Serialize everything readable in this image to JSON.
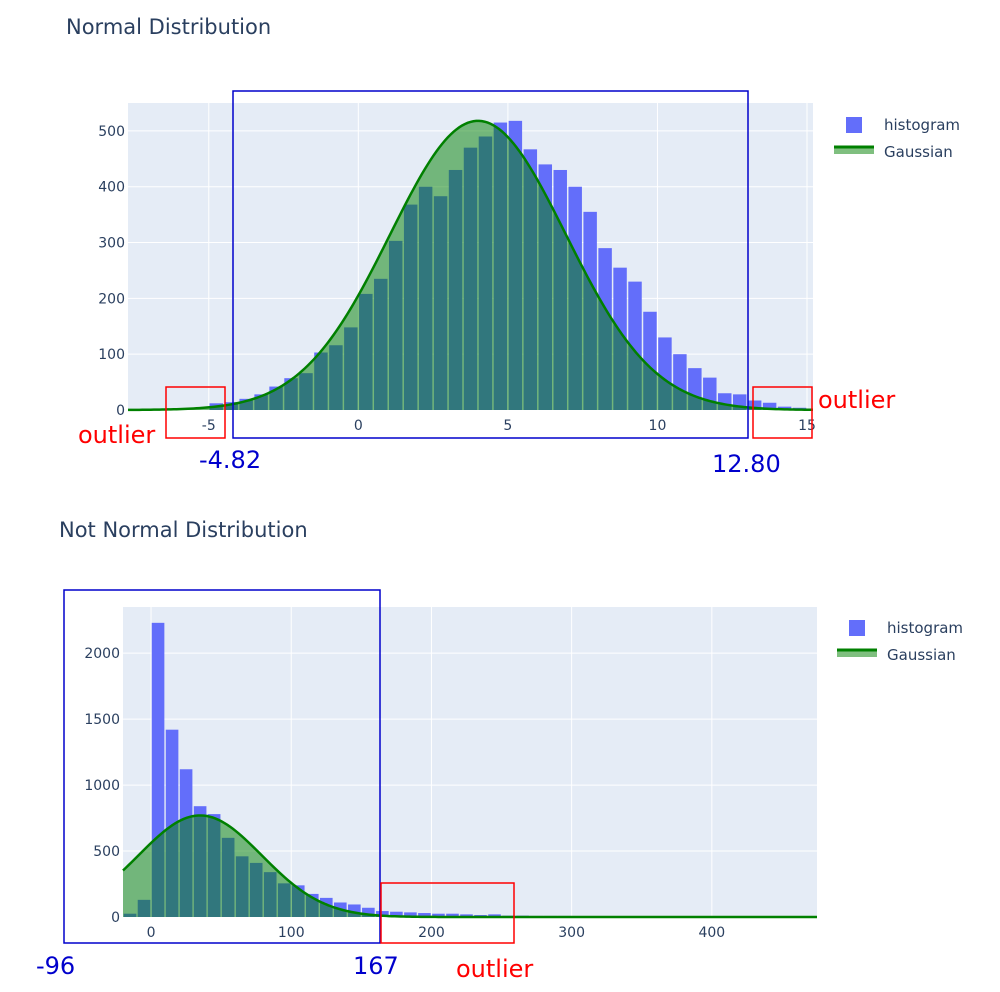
{
  "chart_data": [
    {
      "type": "bar",
      "title": "Normal Distribution",
      "xlim": [
        -7.7,
        15.2
      ],
      "ylim": [
        0,
        550
      ],
      "xticks": [
        -5,
        0,
        5,
        10,
        15
      ],
      "yticks": [
        0,
        100,
        200,
        300,
        400,
        500
      ],
      "grid": true,
      "legend_position": "top-right",
      "bin_width": 0.5,
      "bar_color": "#636efa",
      "series": [
        {
          "name": "histogram",
          "type": "bar",
          "x": [
            -4.75,
            -4.25,
            -3.75,
            -3.25,
            -2.75,
            -2.25,
            -1.75,
            -1.25,
            -0.75,
            -0.25,
            0.25,
            0.75,
            1.25,
            1.75,
            2.25,
            2.75,
            3.25,
            3.75,
            4.25,
            4.75,
            5.25,
            5.75,
            6.25,
            6.75,
            7.25,
            7.75,
            8.25,
            8.75,
            9.25,
            9.75,
            10.25,
            10.75,
            11.25,
            11.75,
            12.25,
            12.75,
            13.25,
            13.75,
            14.25,
            14.75
          ],
          "values": [
            12,
            14,
            20,
            28,
            42,
            57,
            66,
            103,
            116,
            148,
            208,
            235,
            303,
            368,
            400,
            383,
            430,
            470,
            490,
            515,
            518,
            467,
            440,
            430,
            400,
            355,
            290,
            255,
            230,
            176,
            130,
            100,
            75,
            58,
            30,
            28,
            17,
            13,
            6,
            4
          ]
        },
        {
          "name": "Gaussian",
          "type": "area-line",
          "color": "#008000",
          "mean": 4.0,
          "std": 2.94,
          "peak": 518
        }
      ],
      "annotations": [
        {
          "text": "outlier",
          "color": "#ff0000"
        },
        {
          "text": "outlier",
          "color": "#ff0000"
        },
        {
          "text": "-4.82",
          "color": "#0000cc"
        },
        {
          "text": "12.80",
          "color": "#0000cc"
        }
      ]
    },
    {
      "type": "bar",
      "title": "Not Normal Distribution",
      "xlim": [
        -20,
        475
      ],
      "ylim": [
        0,
        2350
      ],
      "xticks": [
        0,
        100,
        200,
        300,
        400
      ],
      "yticks": [
        0,
        500,
        1000,
        1500,
        2000
      ],
      "grid": true,
      "legend_position": "top-right",
      "bin_width": 10,
      "bar_color": "#636efa",
      "series": [
        {
          "name": "histogram",
          "type": "bar",
          "x": [
            -15,
            -5,
            5,
            15,
            25,
            35,
            45,
            55,
            65,
            75,
            85,
            95,
            105,
            115,
            125,
            135,
            145,
            155,
            165,
            175,
            185,
            195,
            205,
            215,
            225,
            235,
            245,
            255,
            265,
            275,
            285,
            295,
            305,
            315,
            325,
            335,
            345,
            355,
            365,
            375,
            385,
            395,
            405,
            415,
            425,
            435,
            445,
            455,
            465
          ],
          "values": [
            25,
            130,
            2230,
            1420,
            1120,
            840,
            780,
            600,
            460,
            410,
            340,
            255,
            240,
            175,
            145,
            110,
            95,
            70,
            45,
            40,
            35,
            30,
            25,
            25,
            20,
            15,
            20,
            10,
            10,
            8,
            8,
            8,
            6,
            6,
            6,
            5,
            5,
            5,
            5,
            4,
            4,
            4,
            4,
            3,
            3,
            3,
            3,
            3,
            3
          ]
        },
        {
          "name": "Gaussian",
          "type": "area-line",
          "color": "#008000",
          "mean": 35,
          "std": 44,
          "peak": 770
        }
      ],
      "annotations": [
        {
          "text": "outlier",
          "color": "#ff0000"
        },
        {
          "text": "-96",
          "color": "#0000cc"
        },
        {
          "text": "167",
          "color": "#0000cc"
        }
      ]
    }
  ]
}
